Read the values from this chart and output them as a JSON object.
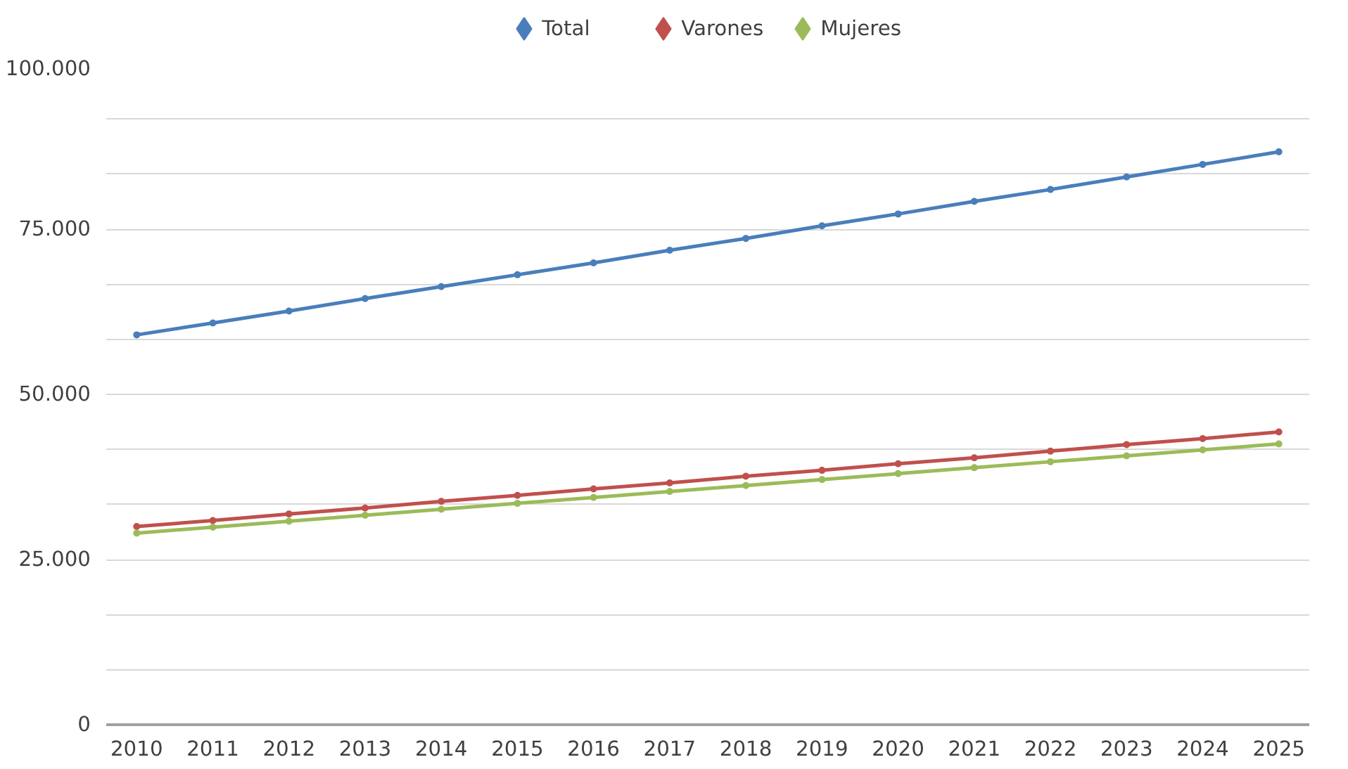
{
  "chart_data": {
    "type": "line",
    "categories": [
      "2010",
      "2011",
      "2012",
      "2013",
      "2014",
      "2015",
      "2016",
      "2017",
      "2018",
      "2019",
      "2020",
      "2021",
      "2022",
      "2023",
      "2024",
      "2025"
    ],
    "series": [
      {
        "name": "Total",
        "color": "#4a7ebb",
        "values": [
          59000,
          60800,
          62600,
          64500,
          66300,
          68100,
          69900,
          71800,
          73600,
          75500,
          77300,
          79200,
          81000,
          82900,
          84800,
          86700
        ]
      },
      {
        "name": "Varones",
        "color": "#c0504d",
        "values": [
          30000,
          30900,
          31900,
          32800,
          33800,
          34700,
          35700,
          36600,
          37600,
          38500,
          39500,
          40400,
          41400,
          42400,
          43300,
          44300
        ]
      },
      {
        "name": "Mujeres",
        "color": "#9bbb59",
        "values": [
          29000,
          29900,
          30800,
          31700,
          32600,
          33500,
          34400,
          35300,
          36200,
          37100,
          38000,
          38900,
          39800,
          40700,
          41600,
          42500
        ]
      }
    ],
    "ylim": [
      0,
      100000
    ],
    "yticks": [
      {
        "value": 0,
        "label": "0"
      },
      {
        "value": 8333.33,
        "label": null
      },
      {
        "value": 16666.67,
        "label": null
      },
      {
        "value": 25000,
        "label": "25.000"
      },
      {
        "value": 33333.33,
        "label": null
      },
      {
        "value": 41666.67,
        "label": null
      },
      {
        "value": 50000,
        "label": "50.000"
      },
      {
        "value": 58333.33,
        "label": null
      },
      {
        "value": 66666.67,
        "label": null
      },
      {
        "value": 75000,
        "label": "75.000"
      },
      {
        "value": 83333.33,
        "label": null
      },
      {
        "value": 91666.67,
        "label": null
      },
      {
        "value": 100000,
        "label": "100.000"
      }
    ],
    "grid": "y",
    "legend": "top",
    "marker": "circle",
    "line_style": "solid"
  }
}
